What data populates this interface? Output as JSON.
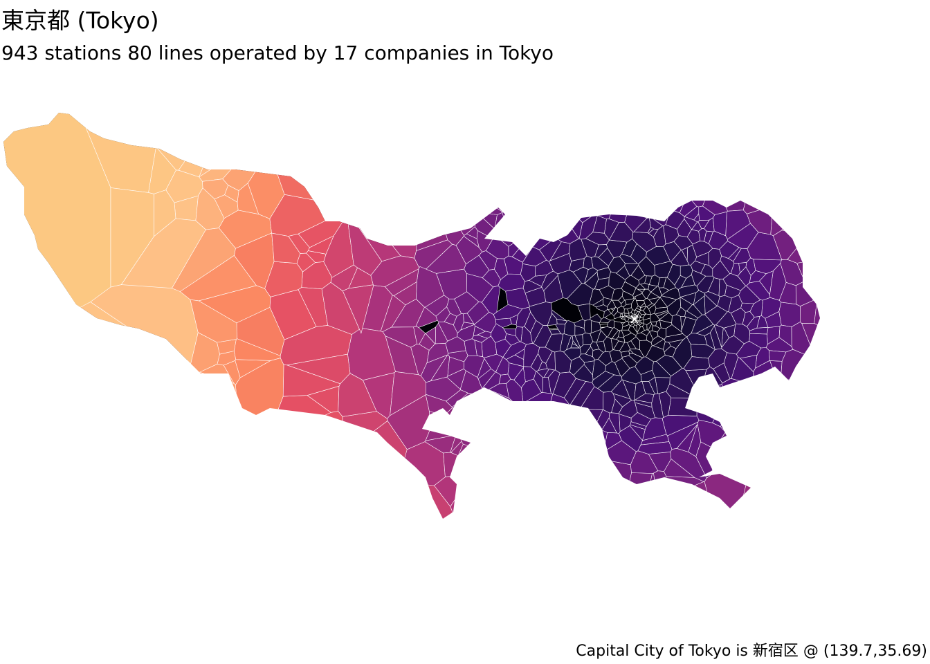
{
  "map": {
    "title": "東京都 (Tokyo)",
    "subtitle": "943 stations 80  lines operated by 17 companies in Tokyo",
    "caption": "Capital City of Tokyo is 新宿区 @ (139.7,35.69)",
    "capital_marker": "×",
    "colors": {
      "near_capital": "#000004",
      "mid": "#b52f8c",
      "far_west": "#fcc582",
      "cell_border": "#ffffff"
    }
  }
}
